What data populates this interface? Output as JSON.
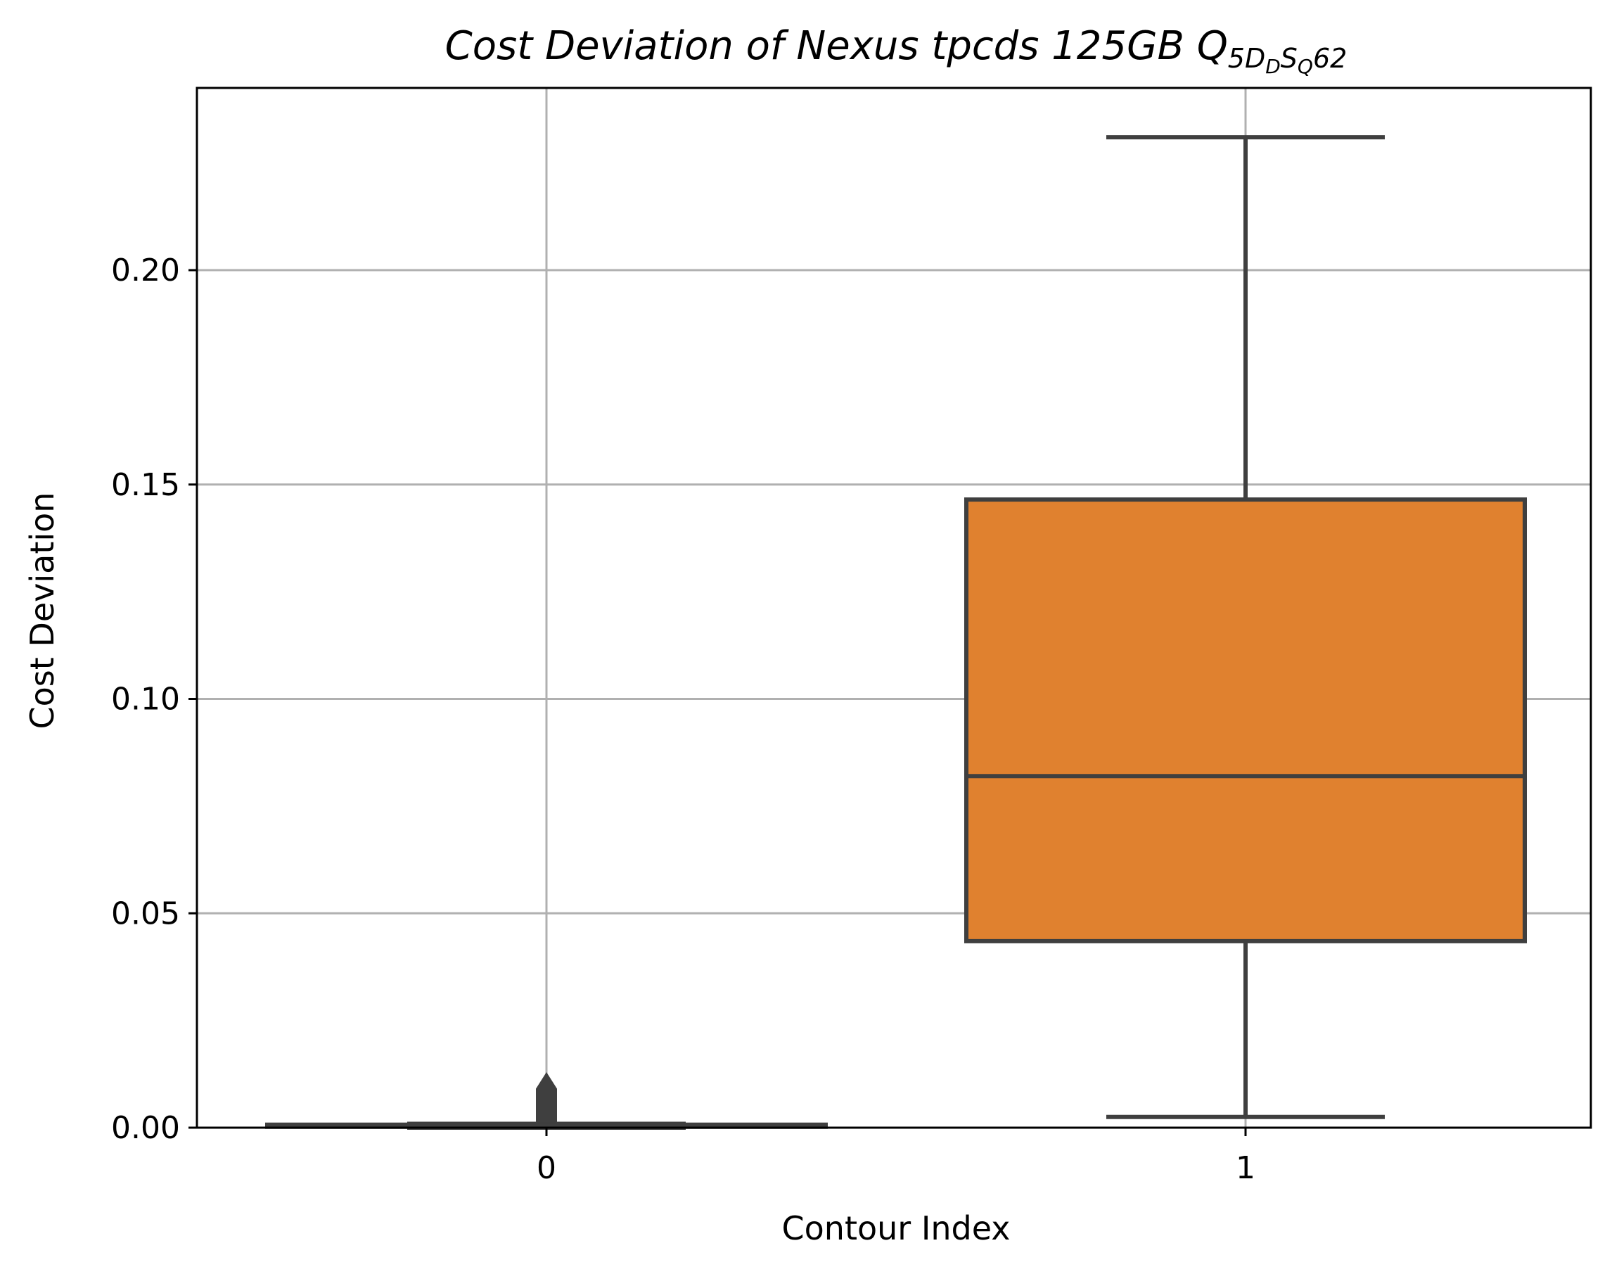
{
  "chart_data": {
    "type": "box",
    "title": {
      "main": "Cost Deviation of Nexus tpcds  125GB  ",
      "q_letter": "Q",
      "q_sub_a": "5",
      "q_sub_d": "D",
      "q_sub_d_sub": "D",
      "q_sub_s": "S",
      "q_sub_s_sub": "Q",
      "q_tail": "62"
    },
    "xlabel": "Contour Index",
    "ylabel": "Cost Deviation",
    "categories": [
      "0",
      "1"
    ],
    "ylim": [
      0,
      0.2425
    ],
    "yticks": [
      0.0,
      0.05,
      0.1,
      0.15,
      0.2
    ],
    "ytick_labels": [
      "0.00",
      "0.05",
      "0.10",
      "0.15",
      "0.20"
    ],
    "grid": true,
    "boxes": [
      {
        "category": "0",
        "whisker_low": 0.0,
        "q1": 0.0002,
        "median": 0.0004,
        "q3": 0.0007,
        "whisker_high": 0.0009,
        "outliers_min": 0.001,
        "outliers_max": 0.012,
        "color": "#3f3f3f"
      },
      {
        "category": "1",
        "whisker_low": 0.0025,
        "q1": 0.0435,
        "median": 0.082,
        "q3": 0.1465,
        "whisker_high": 0.231,
        "color": "#e0812f"
      }
    ],
    "colors": {
      "edge": "#3f3f3f",
      "grid": "#b0b0b0",
      "axes": "#000000"
    }
  }
}
